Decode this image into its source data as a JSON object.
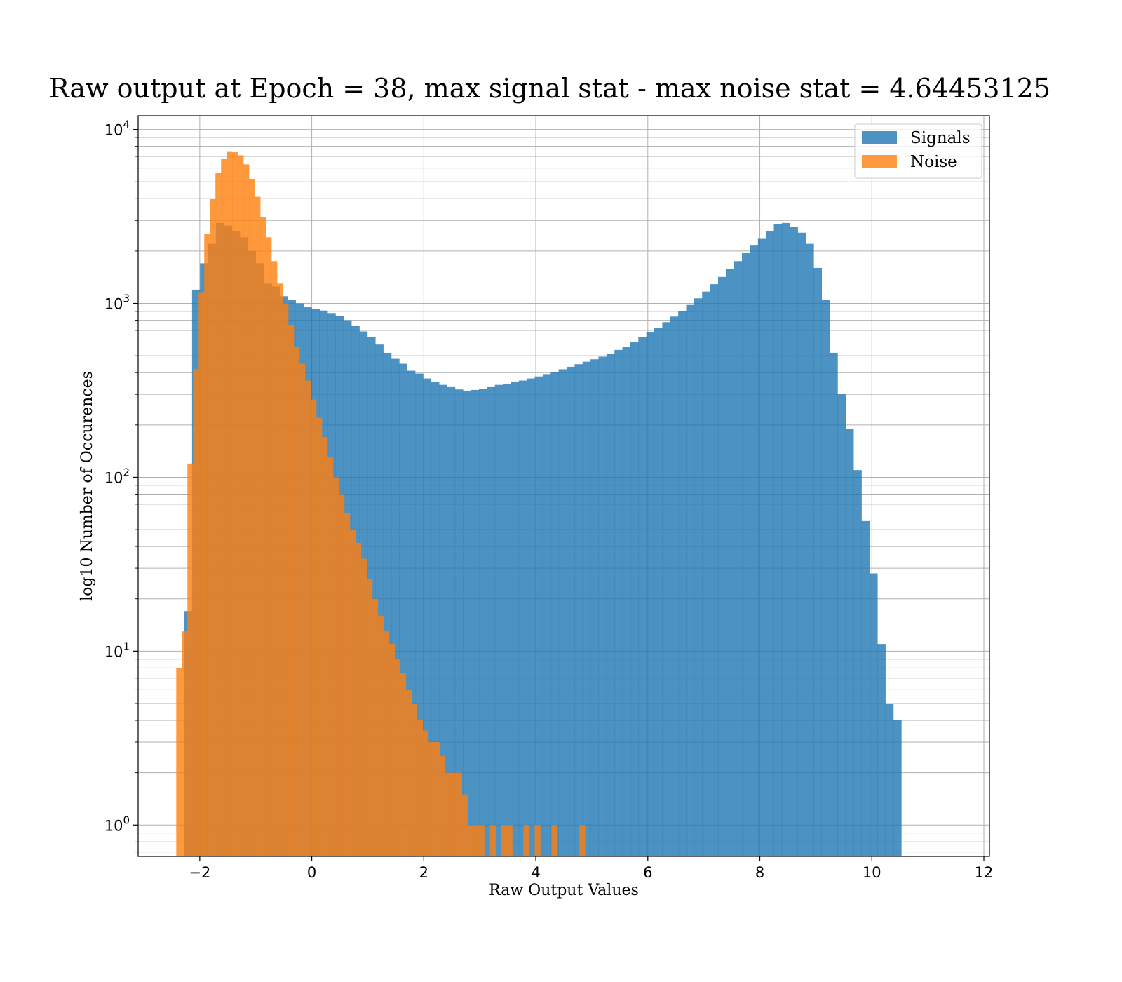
{
  "colors": {
    "signals": "#1f77b4",
    "noise": "#ff7f0e",
    "grid": "#b0b0b0"
  },
  "chart_data": {
    "type": "bar",
    "title": "Raw output at Epoch = 38, max signal stat - max noise stat = 4.64453125",
    "xlabel": "Raw Output Values",
    "ylabel": "log10 Number of Occurences",
    "xlim": [
      -3.1,
      12.1
    ],
    "ylim": [
      0.66,
      12000
    ],
    "yscale": "log",
    "grid": true,
    "legend_position": "upper-right",
    "x_ticks": [
      -2,
      0,
      2,
      4,
      6,
      8,
      10,
      12
    ],
    "x_tick_labels": [
      "−2",
      "0",
      "2",
      "4",
      "6",
      "8",
      "10",
      "12"
    ],
    "y_ticks": [
      1,
      10,
      100,
      1000,
      10000
    ],
    "y_tick_base": "10",
    "y_tick_exponents": [
      "0",
      "1",
      "2",
      "3",
      "4"
    ],
    "series": [
      {
        "name": "Signals",
        "opacity": 0.8,
        "x_start": -2.28,
        "bin_width": 0.1423,
        "values": [
          17,
          1200,
          1700,
          2200,
          2900,
          2800,
          2600,
          2400,
          2000,
          1700,
          1300,
          1250,
          1100,
          1050,
          1000,
          950,
          930,
          910,
          880,
          850,
          800,
          740,
          690,
          640,
          580,
          520,
          480,
          450,
          410,
          395,
          370,
          355,
          340,
          330,
          320,
          315,
          318,
          322,
          330,
          340,
          345,
          352,
          360,
          370,
          380,
          392,
          404,
          418,
          432,
          447,
          462,
          477,
          494,
          515,
          540,
          560,
          600,
          640,
          680,
          720,
          780,
          840,
          900,
          980,
          1070,
          1170,
          1290,
          1420,
          1580,
          1750,
          1950,
          2150,
          2350,
          2600,
          2850,
          2900,
          2750,
          2550,
          2200,
          1600,
          1050,
          520,
          300,
          190,
          110,
          56,
          28,
          11,
          5,
          4
        ]
      },
      {
        "name": "Noise",
        "opacity": 0.8,
        "x_start": -2.42,
        "bin_width": 0.1,
        "values": [
          8,
          13,
          120,
          420,
          1150,
          2500,
          4000,
          5600,
          6800,
          7500,
          7400,
          7100,
          6300,
          5200,
          4100,
          3150,
          2400,
          1750,
          1300,
          1000,
          750,
          560,
          450,
          360,
          280,
          220,
          170,
          130,
          100,
          80,
          62,
          50,
          42,
          34,
          26,
          20,
          16,
          13,
          11,
          9,
          7.5,
          6,
          5,
          4,
          3.5,
          3,
          3,
          2.5,
          2,
          2,
          2,
          1.5,
          1,
          1,
          1,
          0,
          1,
          0,
          1,
          1,
          0,
          0,
          1,
          0,
          1,
          0,
          0,
          1,
          0,
          0,
          0,
          0,
          1
        ]
      }
    ]
  }
}
